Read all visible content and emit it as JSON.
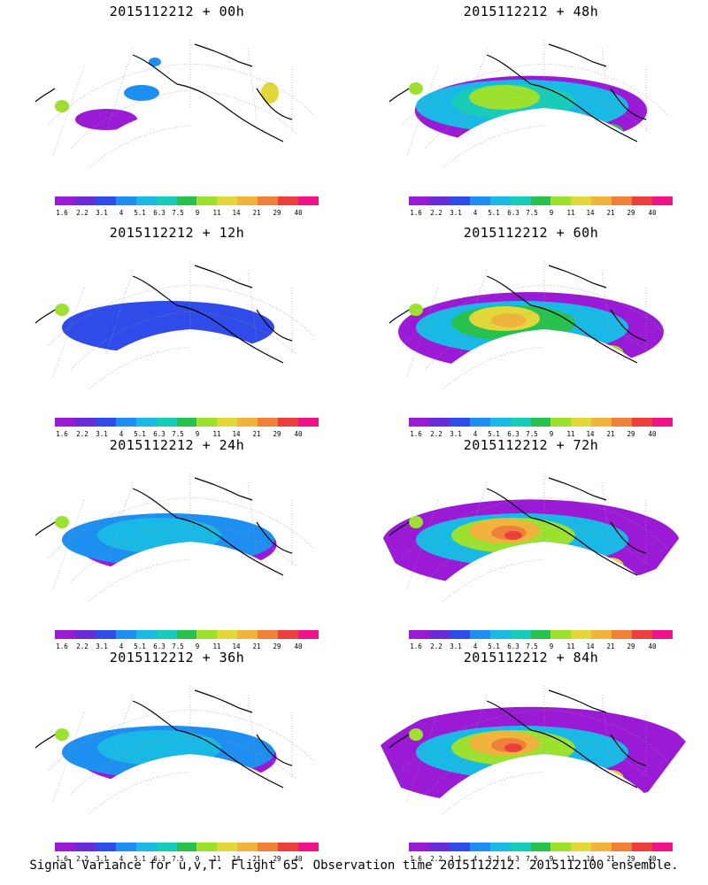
{
  "caption": "Signal Variance for u,v,T. Flight 65. Observation time 2015112212. 2015112100 ensemble.",
  "palette": [
    "#9a1ad6",
    "#6a2bd8",
    "#2f4bea",
    "#1c8ff0",
    "#19b9e6",
    "#17cdb8",
    "#27c24e",
    "#9be12e",
    "#e2d83a",
    "#f0b43c",
    "#f07f38",
    "#ee3f3f",
    "#f0148c"
  ],
  "colorbar_ticks": [
    "1.6",
    "2.2",
    "3.1",
    "4",
    "5.1",
    "6.3",
    "7.5",
    "9",
    "11",
    "14",
    "21",
    "29",
    "40"
  ],
  "panels": [
    {
      "title": "2015112212 + 00h",
      "level": 0
    },
    {
      "title": "2015112212 + 48h",
      "level": 3
    },
    {
      "title": "2015112212 + 12h",
      "level": 1
    },
    {
      "title": "2015112212 + 60h",
      "level": 4
    },
    {
      "title": "2015112212 + 24h",
      "level": 2
    },
    {
      "title": "2015112212 + 72h",
      "level": 5
    },
    {
      "title": "2015112212 + 36h",
      "level": 2
    },
    {
      "title": "2015112212 + 84h",
      "level": 6
    }
  ]
}
